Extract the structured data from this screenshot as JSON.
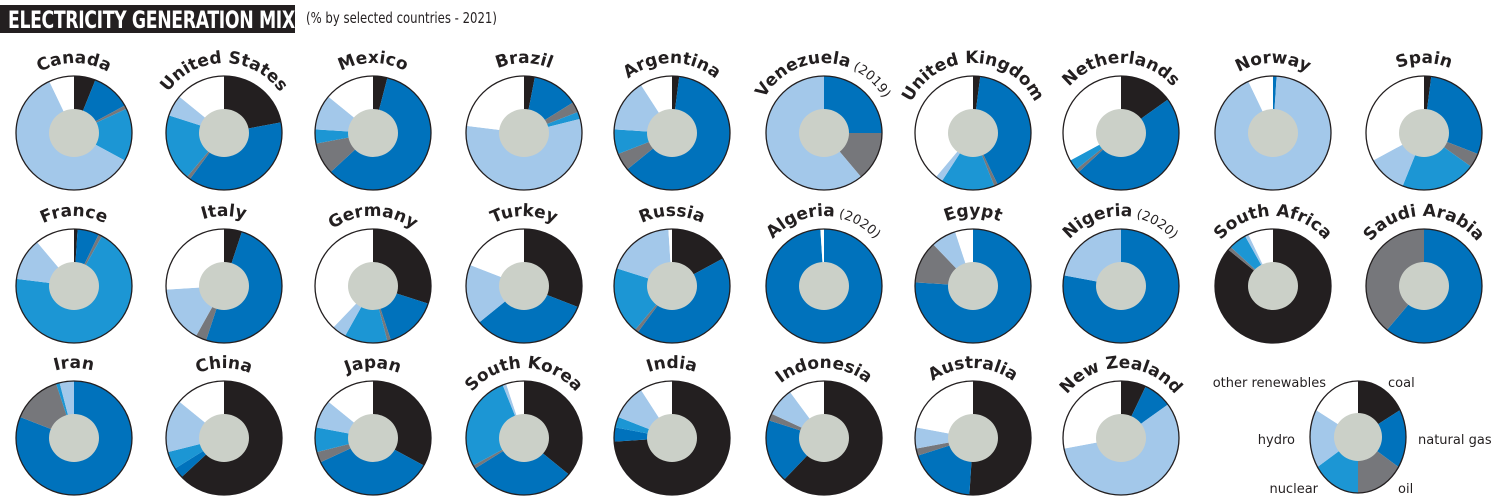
{
  "title": "ELECTRICITY GENERATION MIX",
  "subtitle": "(% by selected countries - 2021)",
  "chart_data": {
    "type": "pie",
    "variant": "donut",
    "title": "ELECTRICITY GENERATION MIX",
    "subtitle": "(% by selected countries - 2021)",
    "sources": [
      "coal",
      "natural gas",
      "oil",
      "nuclear",
      "hydro",
      "other renewables"
    ],
    "colors": {
      "coal": "#231f20",
      "natural gas": "#0072bc",
      "oil": "#76777b",
      "nuclear": "#1c96d4",
      "hydro": "#a3c8ea",
      "other renewables": "#ffffff"
    },
    "countries": [
      {
        "name": "Canada",
        "note": "",
        "values": [
          6,
          11,
          1,
          15,
          60,
          7
        ]
      },
      {
        "name": "United States",
        "note": "",
        "values": [
          22,
          38,
          1,
          19,
          6,
          14
        ]
      },
      {
        "name": "Mexico",
        "note": "",
        "values": [
          4,
          59,
          9,
          4,
          10,
          14
        ]
      },
      {
        "name": "Brazil",
        "note": "",
        "values": [
          3,
          13,
          3,
          2,
          56,
          23
        ]
      },
      {
        "name": "Argentina",
        "note": "",
        "values": [
          2,
          62,
          5,
          7,
          15,
          9
        ]
      },
      {
        "name": "Venezuela",
        "note": "(2019)",
        "values": [
          0,
          25,
          14,
          0,
          61,
          0
        ]
      },
      {
        "name": "United Kingdom",
        "note": "",
        "values": [
          2,
          41,
          1,
          15,
          2,
          39
        ]
      },
      {
        "name": "Netherlands",
        "note": "",
        "values": [
          15,
          48,
          1,
          3,
          0,
          33
        ]
      },
      {
        "name": "Norway",
        "note": "",
        "values": [
          0,
          1,
          0,
          0,
          92,
          7
        ]
      },
      {
        "name": "Spain",
        "note": "",
        "values": [
          2,
          29,
          4,
          21,
          11,
          33
        ]
      },
      {
        "name": "France",
        "note": "",
        "values": [
          1,
          6,
          1,
          69,
          12,
          11
        ]
      },
      {
        "name": "Italy",
        "note": "",
        "values": [
          5,
          50,
          3,
          0,
          16,
          26
        ]
      },
      {
        "name": "Germany",
        "note": "",
        "values": [
          30,
          15,
          1,
          12,
          4,
          38
        ]
      },
      {
        "name": "Turkey",
        "note": "",
        "values": [
          31,
          33,
          0,
          0,
          17,
          19
        ]
      },
      {
        "name": "Russia",
        "note": "",
        "values": [
          17,
          43,
          1,
          19,
          19,
          1
        ]
      },
      {
        "name": "Algeria",
        "note": "(2020)",
        "values": [
          0,
          99,
          0,
          0,
          0,
          1
        ]
      },
      {
        "name": "Egypt",
        "note": "",
        "values": [
          0,
          76,
          12,
          0,
          7,
          5
        ]
      },
      {
        "name": "Nigeria",
        "note": "(2020)",
        "values": [
          0,
          78,
          0,
          0,
          22,
          0
        ]
      },
      {
        "name": "South Africa",
        "note": "",
        "values": [
          86,
          0,
          1,
          5,
          1,
          7
        ]
      },
      {
        "name": "Saudi Arabia",
        "note": "",
        "values": [
          0,
          61,
          39,
          0,
          0,
          0
        ]
      },
      {
        "name": "Iran",
        "note": "",
        "values": [
          0,
          81,
          14,
          1,
          4,
          0
        ]
      },
      {
        "name": "China",
        "note": "",
        "values": [
          63,
          3,
          0,
          5,
          15,
          14
        ]
      },
      {
        "name": "Japan",
        "note": "",
        "values": [
          33,
          35,
          3,
          7,
          8,
          14
        ]
      },
      {
        "name": "South Korea",
        "note": "",
        "values": [
          36,
          30,
          1,
          27,
          1,
          5
        ]
      },
      {
        "name": "India",
        "note": "",
        "values": [
          74,
          4,
          0,
          3,
          10,
          9
        ]
      },
      {
        "name": "Indonesia",
        "note": "",
        "values": [
          62,
          18,
          2,
          0,
          8,
          10
        ]
      },
      {
        "name": "Australia",
        "note": "",
        "values": [
          51,
          19,
          2,
          0,
          6,
          22
        ]
      },
      {
        "name": "New Zealand",
        "note": "",
        "values": [
          7,
          8,
          0,
          0,
          57,
          28
        ]
      }
    ],
    "legend": {
      "placement": "bottom-right",
      "values": [
        17,
        17,
        16,
        16,
        17,
        17
      ]
    }
  }
}
